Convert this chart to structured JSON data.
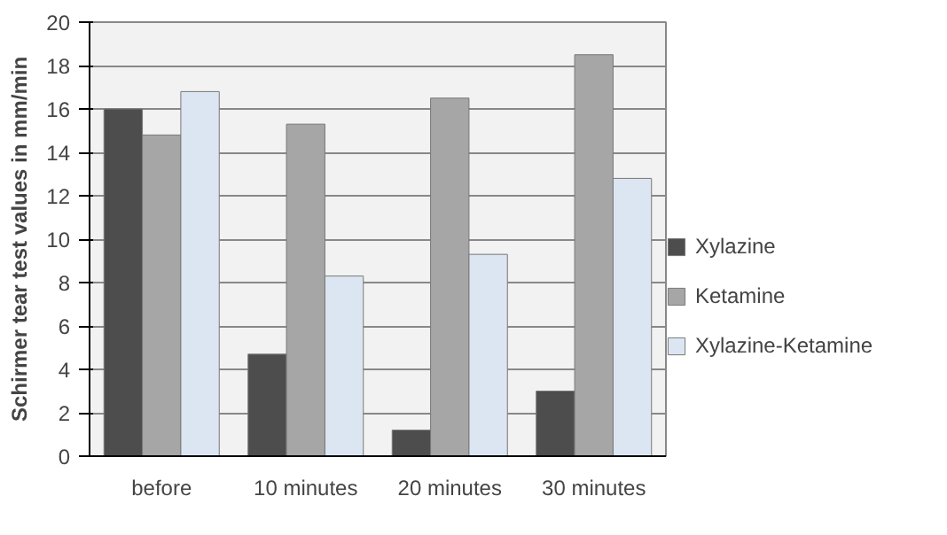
{
  "chart_data": {
    "type": "bar",
    "ylabel": "Schirmer tear test values in mm/min",
    "categories": [
      "before",
      "10 minutes",
      "20 minutes",
      "30 minutes"
    ],
    "series": [
      {
        "name": "Xylazine",
        "color": "#4d4d4d",
        "values": [
          16,
          4.7,
          1.2,
          3.0
        ]
      },
      {
        "name": "Ketamine",
        "color": "#a6a6a6",
        "values": [
          14.8,
          15.3,
          16.5,
          18.5
        ]
      },
      {
        "name": "Xylazine-Ketamine",
        "color": "#dce6f2",
        "values": [
          16.8,
          8.3,
          9.3,
          12.8
        ]
      }
    ],
    "ylim": [
      0,
      20
    ],
    "yticks": [
      0,
      2,
      4,
      6,
      8,
      10,
      12,
      14,
      16,
      18,
      20
    ],
    "grid": "y",
    "legend": "right"
  }
}
